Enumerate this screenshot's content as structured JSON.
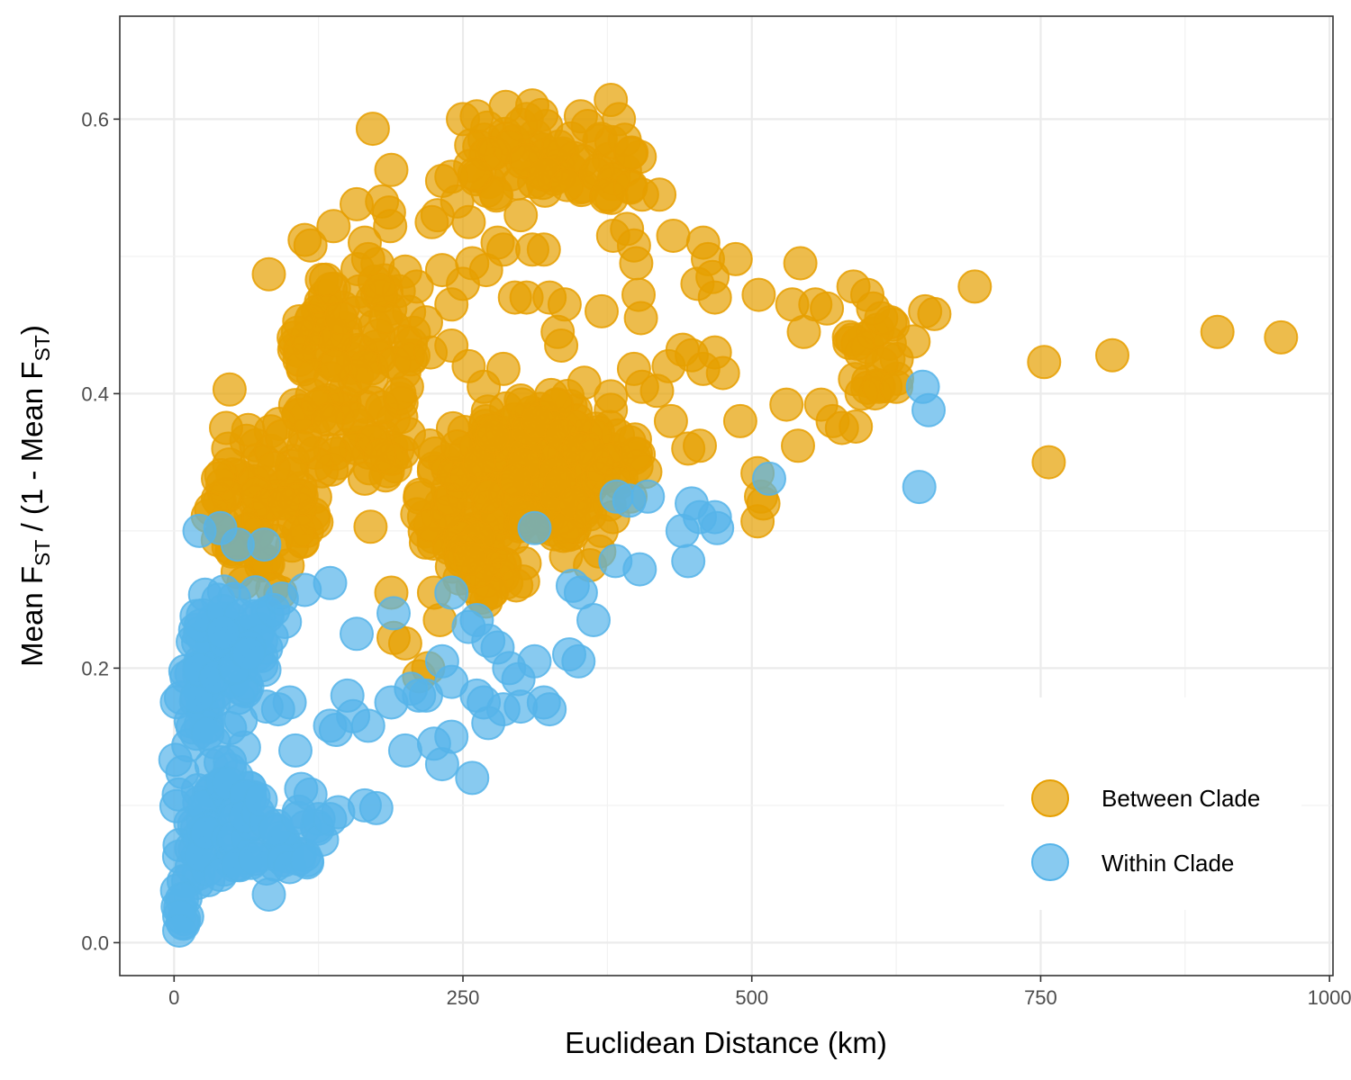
{
  "chart_data": {
    "type": "scatter",
    "title": "",
    "xlabel": "Euclidean Distance (km)",
    "ylabel": {
      "prefix": "Mean F",
      "sub1": "ST",
      "middle": " / (1 - Mean F",
      "sub2": "ST",
      "suffix": ")"
    },
    "xlim": [
      -47,
      1003
    ],
    "ylim": [
      -0.024,
      0.675
    ],
    "x_ticks": [
      0,
      250,
      500,
      750,
      1000
    ],
    "x_tick_labels": [
      "0",
      "250",
      "500",
      "750",
      "1000"
    ],
    "y_ticks": [
      0.0,
      0.2,
      0.4,
      0.6
    ],
    "y_tick_labels": [
      "0.0",
      "0.2",
      "0.4",
      "0.6"
    ],
    "grid": true,
    "legend_position": "bottom-right",
    "series": [
      {
        "name": "Between Clade",
        "color": "#E69F00",
        "points": [
          [
            172,
            0.593
          ],
          [
            188,
            0.563
          ],
          [
            180,
            0.54
          ],
          [
            186,
            0.532
          ],
          [
            187,
            0.522
          ],
          [
            158,
            0.538
          ],
          [
            165,
            0.51
          ],
          [
            168,
            0.498
          ],
          [
            113,
            0.512
          ],
          [
            118,
            0.508
          ],
          [
            138,
            0.522
          ],
          [
            82,
            0.487
          ],
          [
            200,
            0.489
          ],
          [
            210,
            0.478
          ],
          [
            250,
            0.6
          ],
          [
            262,
            0.602
          ],
          [
            287,
            0.609
          ],
          [
            300,
            0.596
          ],
          [
            310,
            0.61
          ],
          [
            318,
            0.603
          ],
          [
            333,
            0.58
          ],
          [
            352,
            0.602
          ],
          [
            358,
            0.595
          ],
          [
            378,
            0.614
          ],
          [
            385,
            0.6
          ],
          [
            390,
            0.585
          ],
          [
            395,
            0.575
          ],
          [
            275,
            0.575
          ],
          [
            290,
            0.58
          ],
          [
            305,
            0.57
          ],
          [
            322,
            0.56
          ],
          [
            340,
            0.552
          ],
          [
            365,
            0.56
          ],
          [
            375,
            0.545
          ],
          [
            395,
            0.55
          ],
          [
            405,
            0.545
          ],
          [
            420,
            0.545
          ],
          [
            260,
            0.56
          ],
          [
            240,
            0.558
          ],
          [
            232,
            0.555
          ],
          [
            245,
            0.54
          ],
          [
            255,
            0.525
          ],
          [
            228,
            0.53
          ],
          [
            223,
            0.525
          ],
          [
            258,
            0.495
          ],
          [
            270,
            0.49
          ],
          [
            285,
            0.505
          ],
          [
            300,
            0.53
          ],
          [
            310,
            0.505
          ],
          [
            320,
            0.505
          ],
          [
            280,
            0.51
          ],
          [
            295,
            0.47
          ],
          [
            305,
            0.47
          ],
          [
            325,
            0.47
          ],
          [
            338,
            0.465
          ],
          [
            332,
            0.445
          ],
          [
            335,
            0.435
          ],
          [
            370,
            0.46
          ],
          [
            380,
            0.515
          ],
          [
            392,
            0.52
          ],
          [
            398,
            0.508
          ],
          [
            400,
            0.495
          ],
          [
            402,
            0.472
          ],
          [
            404,
            0.455
          ],
          [
            432,
            0.515
          ],
          [
            458,
            0.51
          ],
          [
            462,
            0.498
          ],
          [
            466,
            0.485
          ],
          [
            453,
            0.48
          ],
          [
            468,
            0.47
          ],
          [
            486,
            0.498
          ],
          [
            506,
            0.472
          ],
          [
            535,
            0.465
          ],
          [
            542,
            0.495
          ],
          [
            545,
            0.445
          ],
          [
            555,
            0.465
          ],
          [
            565,
            0.462
          ],
          [
            588,
            0.478
          ],
          [
            600,
            0.472
          ],
          [
            605,
            0.462
          ],
          [
            612,
            0.455
          ],
          [
            620,
            0.452
          ],
          [
            640,
            0.438
          ],
          [
            650,
            0.46
          ],
          [
            658,
            0.458
          ],
          [
            693,
            0.478
          ],
          [
            753,
            0.423
          ],
          [
            757,
            0.35
          ],
          [
            812,
            0.428
          ],
          [
            903,
            0.445
          ],
          [
            958,
            0.441
          ],
          [
            430,
            0.38
          ],
          [
            445,
            0.36
          ],
          [
            455,
            0.362
          ],
          [
            490,
            0.38
          ],
          [
            505,
            0.342
          ],
          [
            508,
            0.325
          ],
          [
            510,
            0.32
          ],
          [
            505,
            0.307
          ],
          [
            530,
            0.392
          ],
          [
            540,
            0.362
          ],
          [
            560,
            0.392
          ],
          [
            570,
            0.38
          ],
          [
            578,
            0.375
          ],
          [
            590,
            0.376
          ],
          [
            595,
            0.4
          ],
          [
            610,
            0.405
          ],
          [
            625,
            0.405
          ],
          [
            48,
            0.403
          ],
          [
            45,
            0.375
          ],
          [
            38,
            0.338
          ],
          [
            32,
            0.316
          ],
          [
            42,
            0.3
          ],
          [
            50,
            0.285
          ],
          [
            55,
            0.27
          ],
          [
            60,
            0.262
          ],
          [
            85,
            0.258
          ],
          [
            92,
            0.255
          ],
          [
            170,
            0.303
          ],
          [
            188,
            0.255
          ],
          [
            190,
            0.222
          ],
          [
            200,
            0.218
          ],
          [
            212,
            0.194
          ],
          [
            220,
            0.2
          ],
          [
            230,
            0.235
          ],
          [
            225,
            0.255
          ],
          [
            115,
            0.3
          ],
          [
            108,
            0.3
          ],
          [
            95,
            0.32
          ],
          [
            178,
            0.355
          ],
          [
            165,
            0.338
          ],
          [
            180,
            0.39
          ],
          [
            195,
            0.4
          ],
          [
            205,
            0.425
          ],
          [
            222,
            0.43
          ],
          [
            240,
            0.435
          ],
          [
            255,
            0.42
          ],
          [
            268,
            0.405
          ],
          [
            285,
            0.418
          ],
          [
            300,
            0.395
          ],
          [
            315,
            0.38
          ],
          [
            335,
            0.37
          ],
          [
            350,
            0.36
          ],
          [
            362,
            0.355
          ],
          [
            372,
            0.342
          ],
          [
            385,
            0.335
          ],
          [
            395,
            0.325
          ],
          [
            355,
            0.408
          ],
          [
            378,
            0.398
          ],
          [
            398,
            0.418
          ],
          [
            405,
            0.405
          ],
          [
            418,
            0.402
          ],
          [
            428,
            0.42
          ],
          [
            440,
            0.432
          ],
          [
            448,
            0.428
          ],
          [
            458,
            0.418
          ],
          [
            468,
            0.43
          ],
          [
            475,
            0.415
          ],
          [
            360,
            0.312
          ],
          [
            370,
            0.3
          ],
          [
            380,
            0.31
          ],
          [
            368,
            0.285
          ],
          [
            360,
            0.275
          ],
          [
            250,
            0.48
          ],
          [
            240,
            0.465
          ],
          [
            232,
            0.49
          ],
          [
            218,
            0.452
          ]
        ],
        "dense_regions": [
          {
            "x": [
              100,
              215
            ],
            "y": [
              0.33,
              0.5
            ]
          },
          {
            "x": [
              25,
              130
            ],
            "y": [
              0.27,
              0.38
            ]
          },
          {
            "x": [
              205,
              360
            ],
            "y": [
              0.26,
              0.39
            ]
          },
          {
            "x": [
              240,
              410
            ],
            "y": [
              0.3,
              0.4
            ]
          },
          {
            "x": [
              255,
              345
            ],
            "y": [
              0.54,
              0.605
            ]
          },
          {
            "x": [
              325,
              405
            ],
            "y": [
              0.54,
              0.59
            ]
          },
          {
            "x": [
              580,
              630
            ],
            "y": [
              0.395,
              0.46
            ]
          },
          {
            "x": [
              240,
              300
            ],
            "y": [
              0.245,
              0.3
            ]
          }
        ]
      },
      {
        "name": "Within Clade",
        "color": "#56B4E9",
        "points": [
          [
            648,
            0.405
          ],
          [
            653,
            0.388
          ],
          [
            645,
            0.332
          ],
          [
            515,
            0.338
          ],
          [
            383,
            0.325
          ],
          [
            394,
            0.322
          ],
          [
            410,
            0.325
          ],
          [
            448,
            0.32
          ],
          [
            455,
            0.31
          ],
          [
            468,
            0.31
          ],
          [
            470,
            0.302
          ],
          [
            440,
            0.3
          ],
          [
            445,
            0.278
          ],
          [
            382,
            0.278
          ],
          [
            403,
            0.272
          ],
          [
            312,
            0.302
          ],
          [
            345,
            0.26
          ],
          [
            352,
            0.255
          ],
          [
            363,
            0.235
          ],
          [
            342,
            0.21
          ],
          [
            350,
            0.205
          ],
          [
            312,
            0.205
          ],
          [
            320,
            0.175
          ],
          [
            325,
            0.17
          ],
          [
            290,
            0.2
          ],
          [
            298,
            0.192
          ],
          [
            285,
            0.17
          ],
          [
            300,
            0.172
          ],
          [
            268,
            0.175
          ],
          [
            272,
            0.16
          ],
          [
            262,
            0.18
          ],
          [
            240,
            0.19
          ],
          [
            232,
            0.205
          ],
          [
            240,
            0.255
          ],
          [
            255,
            0.23
          ],
          [
            262,
            0.235
          ],
          [
            272,
            0.22
          ],
          [
            280,
            0.215
          ],
          [
            225,
            0.145
          ],
          [
            232,
            0.13
          ],
          [
            240,
            0.15
          ],
          [
            258,
            0.12
          ],
          [
            212,
            0.18
          ],
          [
            218,
            0.18
          ],
          [
            205,
            0.185
          ],
          [
            190,
            0.24
          ],
          [
            188,
            0.175
          ],
          [
            200,
            0.14
          ],
          [
            168,
            0.158
          ],
          [
            175,
            0.098
          ],
          [
            165,
            0.1
          ],
          [
            150,
            0.18
          ],
          [
            155,
            0.165
          ],
          [
            140,
            0.155
          ],
          [
            135,
            0.158
          ],
          [
            158,
            0.225
          ],
          [
            135,
            0.262
          ],
          [
            113,
            0.257
          ],
          [
            100,
            0.175
          ],
          [
            105,
            0.14
          ],
          [
            110,
            0.112
          ],
          [
            118,
            0.108
          ],
          [
            125,
            0.09
          ],
          [
            128,
            0.075
          ],
          [
            135,
            0.09
          ],
          [
            142,
            0.095
          ],
          [
            90,
            0.17
          ],
          [
            80,
            0.172
          ],
          [
            75,
            0.104
          ],
          [
            82,
            0.035
          ],
          [
            95,
            0.06
          ],
          [
            100,
            0.055
          ],
          [
            115,
            0.06
          ],
          [
            78,
            0.29
          ],
          [
            55,
            0.29
          ],
          [
            40,
            0.302
          ],
          [
            22,
            0.3
          ]
        ],
        "dense_regions": [
          {
            "x": [
              0,
              35
            ],
            "y": [
              0.01,
              0.24
            ]
          },
          {
            "x": [
              15,
              65
            ],
            "y": [
              0.09,
              0.27
            ]
          },
          {
            "x": [
              20,
              80
            ],
            "y": [
              0.04,
              0.12
            ]
          },
          {
            "x": [
              40,
              100
            ],
            "y": [
              0.19,
              0.265
            ]
          },
          {
            "x": [
              30,
              130
            ],
            "y": [
              0.05,
              0.1
            ]
          },
          {
            "x": [
              0,
              15
            ],
            "y": [
              0.005,
              0.06
            ]
          }
        ]
      }
    ]
  }
}
